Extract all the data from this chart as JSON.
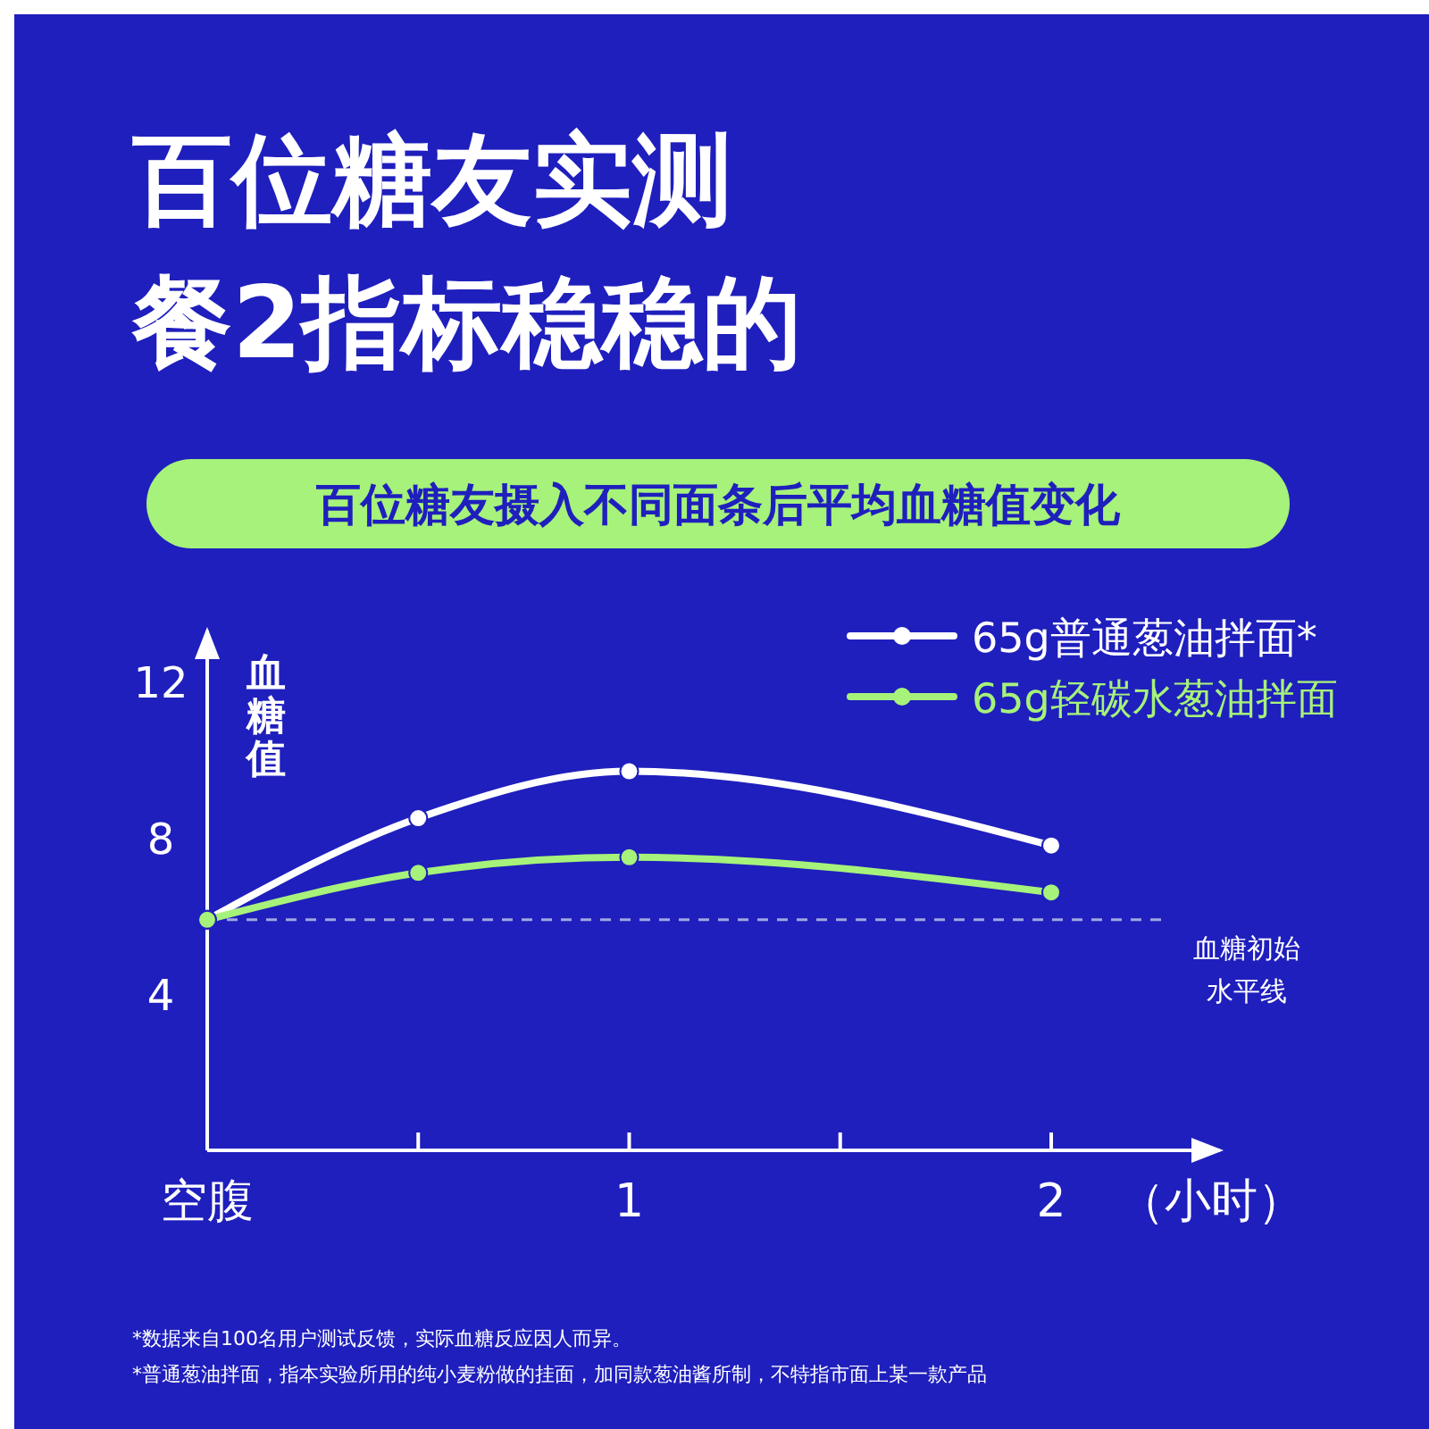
{
  "chart_data": {
    "type": "line",
    "title": "百位糖友实测餐2指标稳稳的",
    "subtitle": "百位糖友摄入不同面条后平均血糖值变化",
    "xlabel": "（小时）",
    "ylabel": "血糖值",
    "x": [
      0,
      0.5,
      1,
      2
    ],
    "series": [
      {
        "name": "65g普通葱油拌面*",
        "color": "#ffffff",
        "values": [
          5.9,
          8.5,
          9.7,
          7.8
        ]
      },
      {
        "name": "65g轻碳水葱油拌面",
        "color": "#a6f27a",
        "values": [
          5.9,
          7.1,
          7.5,
          6.6
        ]
      }
    ],
    "xlim": [
      0,
      2.4
    ],
    "xticks": [
      {
        "value": 0,
        "label": "空腹"
      },
      {
        "value": 0.5,
        "label": null
      },
      1,
      {
        "value": 1.5,
        "label": null
      },
      2
    ],
    "ylim": [
      0,
      13.3
    ],
    "yticks": [
      4,
      8,
      12
    ],
    "ref_lines": [
      {
        "axis": "y",
        "value": 5.9,
        "label": "血糖初始水平线",
        "line_style": "dashed",
        "color": "#a0a8e0"
      }
    ],
    "marker": "circle",
    "legend": "top right",
    "grid": false,
    "annotations": [
      "*数据来自100名用户测试反馈，实际血糖反应因人而异。",
      "*普通葱油拌面，指本实验所用的纯小麦粉做的挂面，加同款葱油酱所制，不特指市面上某一款产品"
    ]
  }
}
